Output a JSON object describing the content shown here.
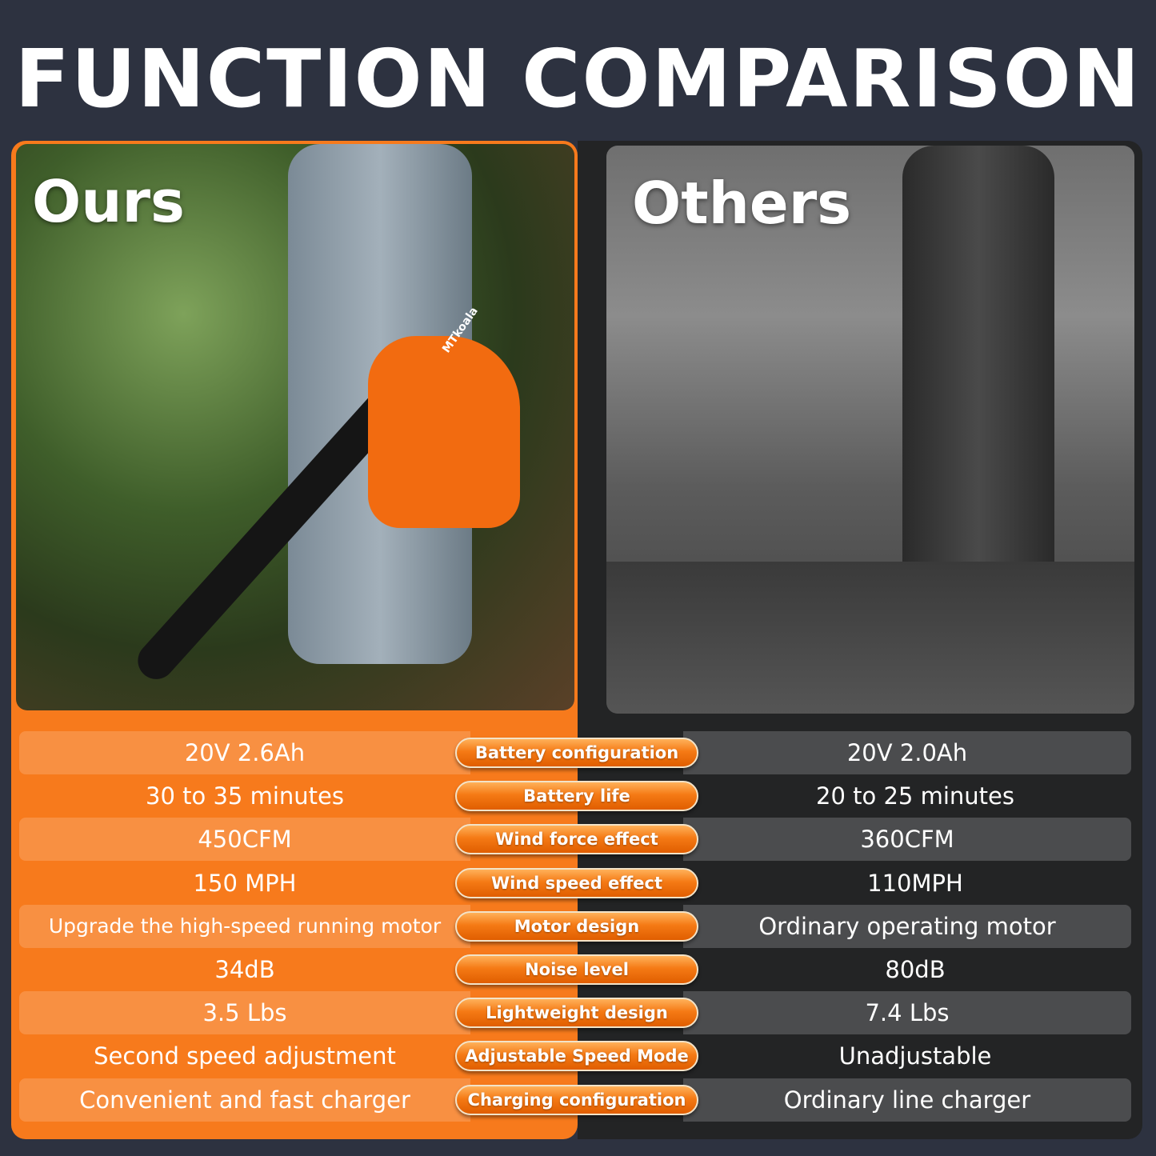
{
  "title": "FUNCTION COMPARISON",
  "colors": {
    "background": "#2d3240",
    "ours_accent": "#f77a1c",
    "others_panel": "#232425"
  },
  "ours": {
    "label": "Ours",
    "brand_on_product": "MTkoala"
  },
  "others": {
    "label": "Others"
  },
  "rows": [
    {
      "feature": "Battery configuration",
      "ours": "20V 2.6Ah",
      "others": "20V 2.0Ah"
    },
    {
      "feature": "Battery life",
      "ours": "30 to 35 minutes",
      "others": "20 to 25 minutes"
    },
    {
      "feature": "Wind force effect",
      "ours": "450CFM",
      "others": "360CFM"
    },
    {
      "feature": "Wind speed effect",
      "ours": "150 MPH",
      "others": "110MPH"
    },
    {
      "feature": "Motor design",
      "ours": "Upgrade the high-speed running motor",
      "others": "Ordinary operating motor"
    },
    {
      "feature": "Noise level",
      "ours": "34dB",
      "others": "80dB"
    },
    {
      "feature": "Lightweight design",
      "ours": "3.5 Lbs",
      "others": "7.4 Lbs"
    },
    {
      "feature": "Adjustable Speed Mode",
      "ours": "Second speed adjustment",
      "others": "Unadjustable"
    },
    {
      "feature": "Charging configuration",
      "ours": "Convenient and fast charger",
      "others": "Ordinary line charger"
    }
  ]
}
